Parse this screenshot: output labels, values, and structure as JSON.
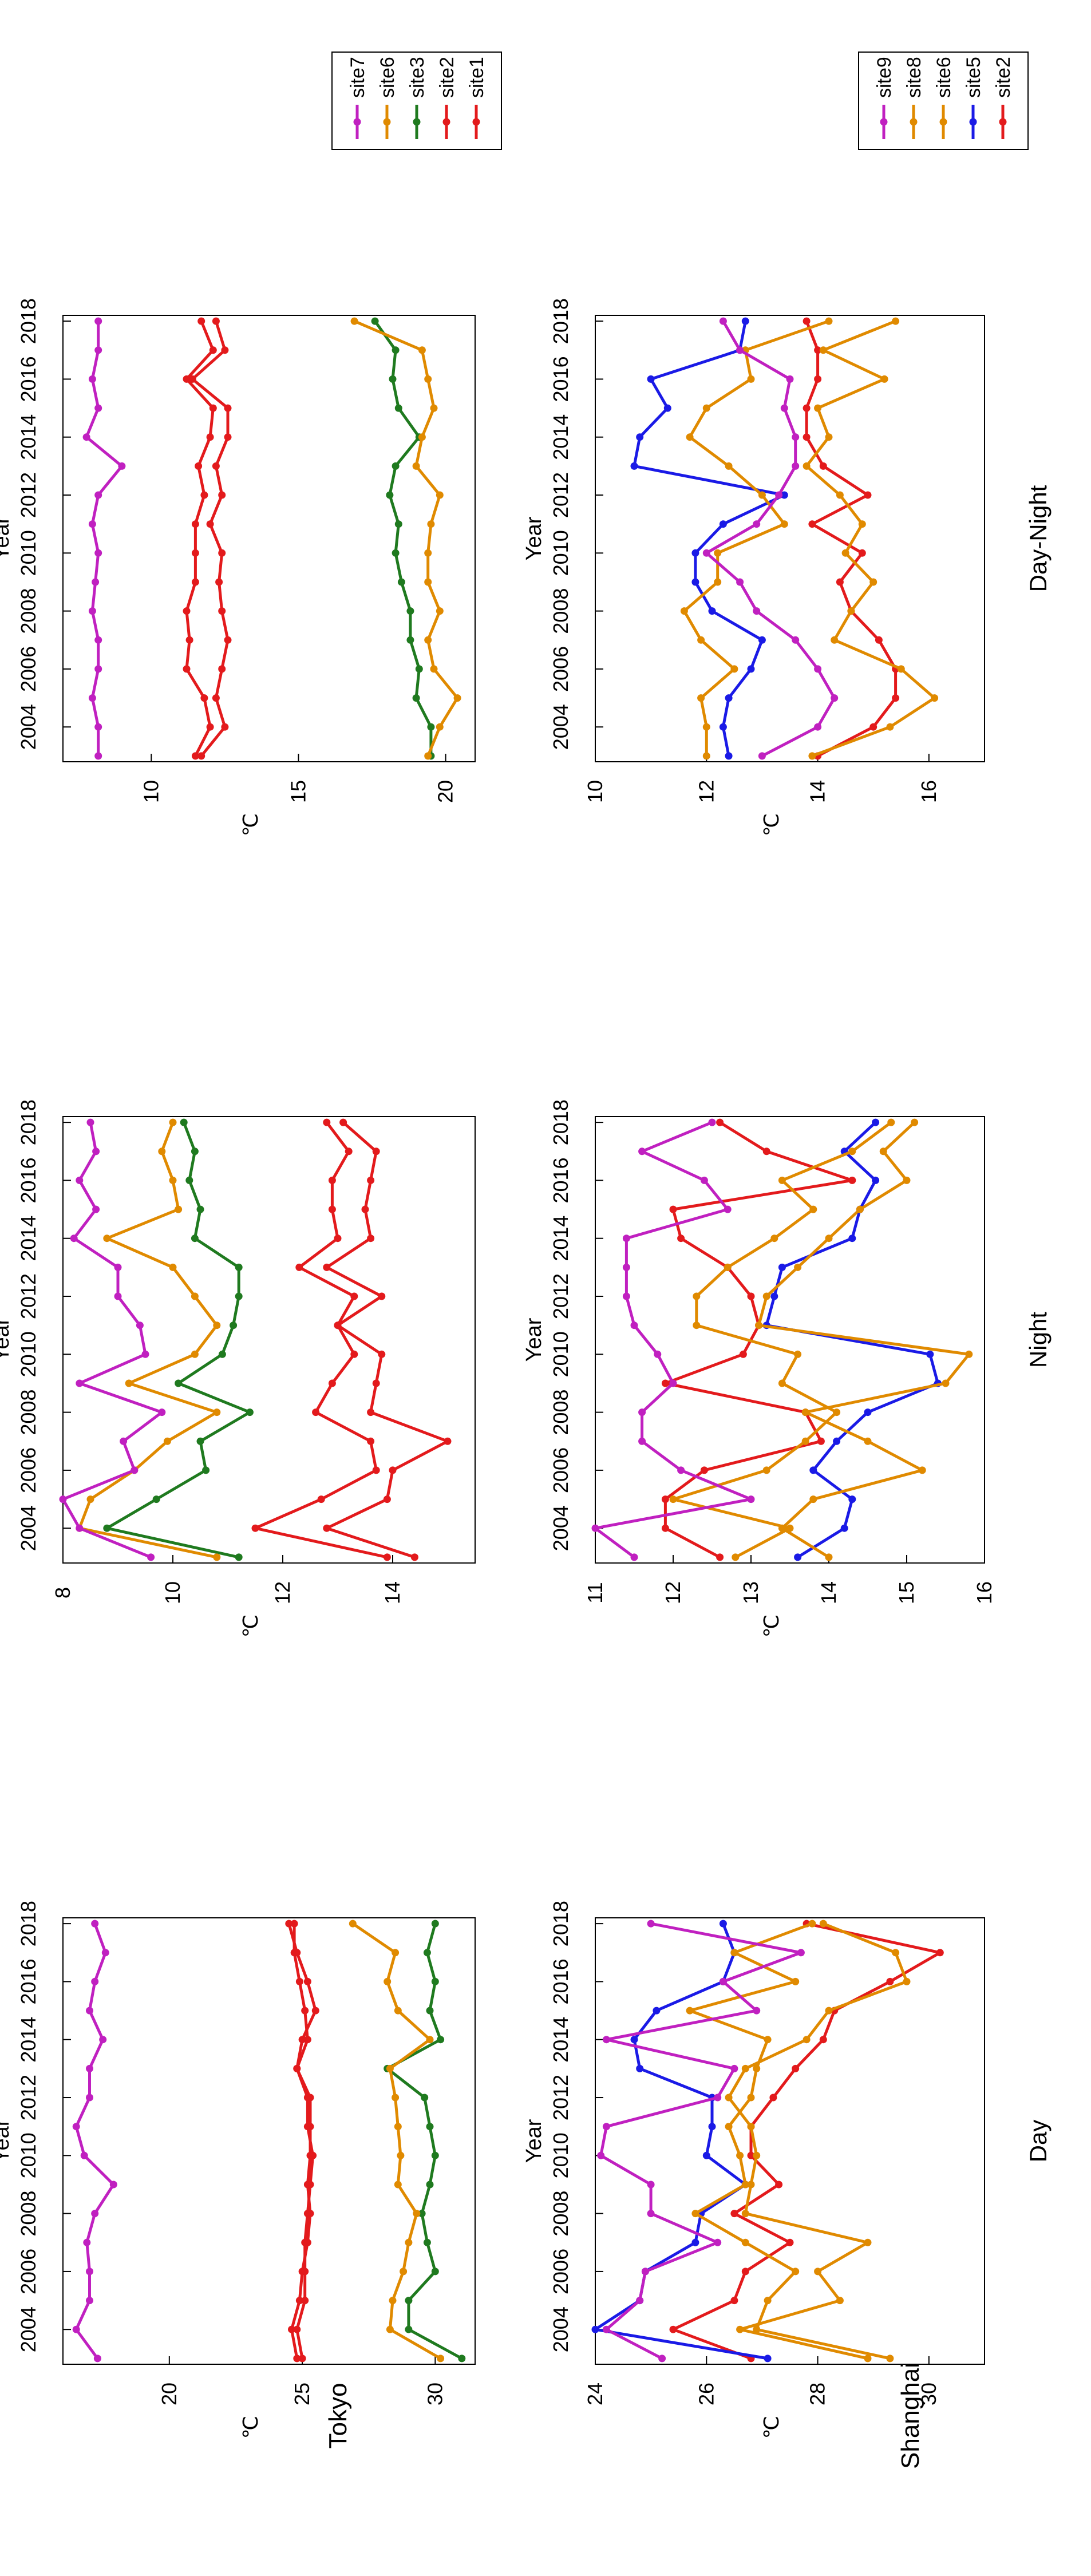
{
  "colors": {
    "site1": "#e31a1c",
    "site2": "#e31a1c",
    "site3": "#1f7a1f",
    "site5": "#1a1ae6",
    "site6": "#e08a00",
    "site7": "#c020c0",
    "site8": "#e08a00",
    "site9": "#c020c0"
  },
  "row_labels": [
    "Shanghai",
    "Tokyo"
  ],
  "column_titles": [
    "Day",
    "Night",
    "Day-Night"
  ],
  "xlabel": "Year",
  "ylabel": "℃",
  "legends": {
    "shanghai": {
      "placement": "right",
      "entries": [
        "site2",
        "site5",
        "site6",
        "site8",
        "site9"
      ]
    },
    "tokyo": {
      "placement": "right",
      "entries": [
        "site1",
        "site2",
        "site3",
        "site6",
        "site7"
      ]
    }
  },
  "chart_data": [
    {
      "type": "line",
      "row": "Shanghai",
      "title": "Day",
      "xlabel": "Year",
      "ylabel": "℃",
      "xlim": [
        2002.8,
        2018.2
      ],
      "ylim": [
        24,
        31
      ],
      "xticks": [
        2004,
        2006,
        2008,
        2010,
        2012,
        2014,
        2016,
        2018
      ],
      "yticks": [
        24,
        26,
        28,
        30
      ],
      "grid": false,
      "x": [
        2003,
        2004,
        2005,
        2006,
        2007,
        2008,
        2009,
        2010,
        2011,
        2012,
        2013,
        2014,
        2015,
        2016,
        2017,
        2018
      ],
      "series": [
        {
          "name": "site2",
          "values": [
            26.8,
            25.4,
            26.5,
            26.7,
            27.5,
            26.5,
            27.3,
            26.8,
            26.8,
            27.2,
            27.6,
            28.1,
            28.3,
            29.3,
            30.2,
            27.8
          ]
        },
        {
          "name": "site5",
          "values": [
            27.1,
            24.0,
            24.8,
            24.9,
            25.8,
            25.9,
            26.7,
            26.0,
            26.1,
            26.1,
            24.8,
            24.7,
            25.1,
            26.3,
            26.5,
            26.3
          ]
        },
        {
          "name": "site6",
          "values": [
            29.3,
            26.9,
            27.1,
            27.6,
            26.7,
            25.8,
            26.7,
            26.6,
            26.4,
            26.8,
            26.9,
            27.1,
            25.7,
            27.6,
            26.5,
            27.9
          ]
        },
        {
          "name": "site8",
          "values": [
            28.9,
            26.6,
            28.4,
            28.0,
            28.9,
            26.7,
            26.8,
            26.9,
            26.8,
            26.4,
            26.7,
            27.8,
            28.2,
            29.6,
            29.4,
            28.1
          ]
        },
        {
          "name": "site9",
          "values": [
            25.2,
            24.2,
            24.8,
            24.9,
            26.2,
            25.0,
            25.0,
            24.1,
            24.2,
            26.2,
            26.5,
            24.2,
            26.9,
            26.3,
            27.7,
            25.0
          ]
        }
      ]
    },
    {
      "type": "line",
      "row": "Shanghai",
      "title": "Night",
      "xlabel": "Year",
      "ylabel": "℃",
      "xlim": [
        2002.8,
        2018.2
      ],
      "ylim": [
        11,
        16
      ],
      "xticks": [
        2004,
        2006,
        2008,
        2010,
        2012,
        2014,
        2016,
        2018
      ],
      "yticks": [
        11,
        12,
        13,
        14,
        15,
        16
      ],
      "grid": false,
      "x": [
        2003,
        2004,
        2005,
        2006,
        2007,
        2008,
        2009,
        2010,
        2011,
        2012,
        2013,
        2014,
        2015,
        2016,
        2017,
        2018
      ],
      "series": [
        {
          "name": "site2",
          "values": [
            12.6,
            11.9,
            11.9,
            12.4,
            13.9,
            13.7,
            11.9,
            12.9,
            13.1,
            13.0,
            12.7,
            12.1,
            12.0,
            14.3,
            13.2,
            12.6
          ]
        },
        {
          "name": "site5",
          "values": [
            13.6,
            14.2,
            14.3,
            13.8,
            14.1,
            14.5,
            15.4,
            15.3,
            13.2,
            13.3,
            13.4,
            14.3,
            14.4,
            14.6,
            14.2,
            14.6
          ]
        },
        {
          "name": "site6",
          "values": [
            14.0,
            13.4,
            13.8,
            15.2,
            14.5,
            13.7,
            15.5,
            15.8,
            13.1,
            13.2,
            13.6,
            14.0,
            14.4,
            15.0,
            14.7,
            15.1
          ]
        },
        {
          "name": "site8",
          "values": [
            12.8,
            13.5,
            12.0,
            13.2,
            13.7,
            14.1,
            13.4,
            13.6,
            12.3,
            12.3,
            12.7,
            13.3,
            13.8,
            13.4,
            14.3,
            14.8
          ]
        },
        {
          "name": "site9",
          "values": [
            11.5,
            11.0,
            13.0,
            12.1,
            11.6,
            11.6,
            12.0,
            11.8,
            11.5,
            11.4,
            11.4,
            11.4,
            12.7,
            12.4,
            11.6,
            12.5
          ]
        }
      ]
    },
    {
      "type": "line",
      "row": "Shanghai",
      "title": "Day-Night",
      "xlabel": "Year",
      "ylabel": "℃",
      "xlim": [
        2002.8,
        2018.2
      ],
      "ylim": [
        10,
        17
      ],
      "xticks": [
        2004,
        2006,
        2008,
        2010,
        2012,
        2014,
        2016,
        2018
      ],
      "yticks": [
        10,
        12,
        14,
        16
      ],
      "grid": false,
      "x": [
        2003,
        2004,
        2005,
        2006,
        2007,
        2008,
        2009,
        2010,
        2011,
        2012,
        2013,
        2014,
        2015,
        2016,
        2017,
        2018
      ],
      "series": [
        {
          "name": "site2",
          "values": [
            14.0,
            15.0,
            15.4,
            15.4,
            15.1,
            14.6,
            14.4,
            14.8,
            13.9,
            14.9,
            14.1,
            13.8,
            13.8,
            14.0,
            14.0,
            13.8
          ]
        },
        {
          "name": "site5",
          "values": [
            12.4,
            12.3,
            12.4,
            12.8,
            13.0,
            12.1,
            11.8,
            11.8,
            12.3,
            13.4,
            10.7,
            10.8,
            11.3,
            11.0,
            12.6,
            12.7
          ]
        },
        {
          "name": "site6",
          "values": [
            12.0,
            12.0,
            11.9,
            12.5,
            11.9,
            11.6,
            12.2,
            12.2,
            13.4,
            13.0,
            12.4,
            11.7,
            12.0,
            12.8,
            12.7,
            14.2
          ]
        },
        {
          "name": "site8",
          "values": [
            13.9,
            15.3,
            16.1,
            15.5,
            14.3,
            14.6,
            15.0,
            14.5,
            14.8,
            14.4,
            13.8,
            14.2,
            14.0,
            15.2,
            14.1,
            15.4
          ]
        },
        {
          "name": "site9",
          "values": [
            13.0,
            14.0,
            14.3,
            14.0,
            13.6,
            12.9,
            12.6,
            12.0,
            12.9,
            13.3,
            13.6,
            13.6,
            13.4,
            13.5,
            12.6,
            12.3
          ]
        }
      ]
    },
    {
      "type": "line",
      "row": "Tokyo",
      "title": "",
      "xlabel": "Year",
      "ylabel": "℃",
      "xlim": [
        2002.8,
        2018.2
      ],
      "ylim": [
        16,
        31.5
      ],
      "xticks": [
        2004,
        2006,
        2008,
        2010,
        2012,
        2014,
        2016,
        2018
      ],
      "yticks": [
        20,
        25,
        30
      ],
      "grid": false,
      "x": [
        2003,
        2004,
        2005,
        2006,
        2007,
        2008,
        2009,
        2010,
        2011,
        2012,
        2013,
        2014,
        2015,
        2016,
        2017,
        2018
      ],
      "series": [
        {
          "name": "site1",
          "values": [
            24.8,
            24.6,
            24.9,
            25.0,
            25.2,
            25.3,
            25.2,
            25.3,
            25.3,
            25.3,
            24.8,
            25.2,
            25.1,
            24.9,
            24.7,
            24.7
          ]
        },
        {
          "name": "site2",
          "values": [
            25.0,
            24.8,
            25.1,
            25.1,
            25.1,
            25.2,
            25.3,
            25.4,
            25.2,
            25.2,
            24.8,
            25.0,
            25.5,
            25.2,
            24.8,
            24.5
          ]
        },
        {
          "name": "site3",
          "values": [
            31.0,
            29.0,
            29.0,
            30.0,
            29.7,
            29.5,
            29.8,
            30.0,
            29.8,
            29.6,
            28.2,
            30.2,
            29.8,
            30.0,
            29.7,
            30.0
          ]
        },
        {
          "name": "site6",
          "values": [
            30.2,
            28.3,
            28.4,
            28.8,
            29.0,
            29.3,
            28.6,
            28.7,
            28.6,
            28.5,
            28.3,
            29.8,
            28.6,
            28.2,
            28.5,
            26.9
          ]
        },
        {
          "name": "site7",
          "values": [
            17.3,
            16.5,
            17.0,
            17.0,
            16.9,
            17.2,
            17.9,
            16.8,
            16.5,
            17.0,
            17.0,
            17.5,
            17.0,
            17.2,
            17.6,
            17.2
          ]
        }
      ]
    },
    {
      "type": "line",
      "row": "Tokyo",
      "title": "",
      "xlabel": "Year",
      "ylabel": "℃",
      "xlim": [
        2002.8,
        2018.2
      ],
      "ylim": [
        8,
        15.5
      ],
      "xticks": [
        2004,
        2006,
        2008,
        2010,
        2012,
        2014,
        2016,
        2018
      ],
      "yticks": [
        8,
        10,
        12,
        14
      ],
      "grid": false,
      "x": [
        2003,
        2004,
        2005,
        2006,
        2007,
        2008,
        2009,
        2010,
        2011,
        2012,
        2013,
        2014,
        2015,
        2016,
        2017,
        2018
      ],
      "series": [
        {
          "name": "site1",
          "values": [
            14.4,
            12.8,
            13.9,
            14.0,
            15.0,
            13.6,
            13.7,
            13.8,
            13.0,
            13.8,
            12.8,
            13.6,
            13.5,
            13.6,
            13.7,
            13.1
          ]
        },
        {
          "name": "site2",
          "values": [
            13.9,
            11.5,
            12.7,
            13.7,
            13.6,
            12.6,
            12.9,
            13.3,
            13.0,
            13.3,
            12.3,
            13.0,
            12.9,
            12.9,
            13.2,
            12.8
          ]
        },
        {
          "name": "site3",
          "values": [
            11.2,
            8.8,
            9.7,
            10.6,
            10.5,
            11.4,
            10.1,
            10.9,
            11.1,
            11.2,
            11.2,
            10.4,
            10.5,
            10.3,
            10.4,
            10.2
          ]
        },
        {
          "name": "site6",
          "values": [
            10.8,
            8.3,
            8.5,
            9.3,
            9.9,
            10.8,
            9.2,
            10.4,
            10.8,
            10.4,
            10.0,
            8.8,
            10.1,
            10.0,
            9.8,
            10.0
          ]
        },
        {
          "name": "site7",
          "values": [
            9.6,
            8.3,
            8.0,
            9.3,
            9.1,
            9.8,
            8.3,
            9.5,
            9.4,
            9.0,
            9.0,
            8.2,
            8.6,
            8.3,
            8.6,
            8.5
          ]
        }
      ]
    },
    {
      "type": "line",
      "row": "Tokyo",
      "title": "",
      "xlabel": "Year",
      "ylabel": "℃",
      "xlim": [
        2002.8,
        2018.2
      ],
      "ylim": [
        7,
        21
      ],
      "xticks": [
        2004,
        2006,
        2008,
        2010,
        2012,
        2014,
        2016,
        2018
      ],
      "yticks": [
        10,
        15,
        20
      ],
      "grid": false,
      "x": [
        2003,
        2004,
        2005,
        2006,
        2007,
        2008,
        2009,
        2010,
        2011,
        2012,
        2013,
        2014,
        2015,
        2016,
        2017,
        2018
      ],
      "series": [
        {
          "name": "site1",
          "values": [
            11.5,
            12.0,
            11.8,
            11.2,
            11.3,
            11.2,
            11.5,
            11.5,
            11.5,
            11.8,
            11.6,
            12.0,
            12.1,
            11.2,
            12.1,
            11.7
          ]
        },
        {
          "name": "site2",
          "values": [
            11.7,
            12.5,
            12.2,
            12.4,
            12.6,
            12.4,
            12.3,
            12.4,
            12.0,
            12.4,
            12.2,
            12.6,
            12.6,
            11.4,
            12.5,
            12.2
          ]
        },
        {
          "name": "site3",
          "values": [
            19.5,
            19.5,
            19.0,
            19.1,
            18.8,
            18.8,
            18.5,
            18.3,
            18.4,
            18.1,
            18.3,
            19.1,
            18.4,
            18.2,
            18.3,
            17.6
          ]
        },
        {
          "name": "site6",
          "values": [
            19.4,
            19.8,
            20.4,
            19.6,
            19.4,
            19.8,
            19.4,
            19.4,
            19.5,
            19.8,
            19.0,
            19.2,
            19.6,
            19.4,
            19.2,
            16.9
          ]
        },
        {
          "name": "site7",
          "values": [
            8.2,
            8.2,
            8.0,
            8.2,
            8.2,
            8.0,
            8.1,
            8.2,
            8.0,
            8.2,
            9.0,
            7.8,
            8.2,
            8.0,
            8.2,
            8.2
          ]
        }
      ]
    }
  ]
}
